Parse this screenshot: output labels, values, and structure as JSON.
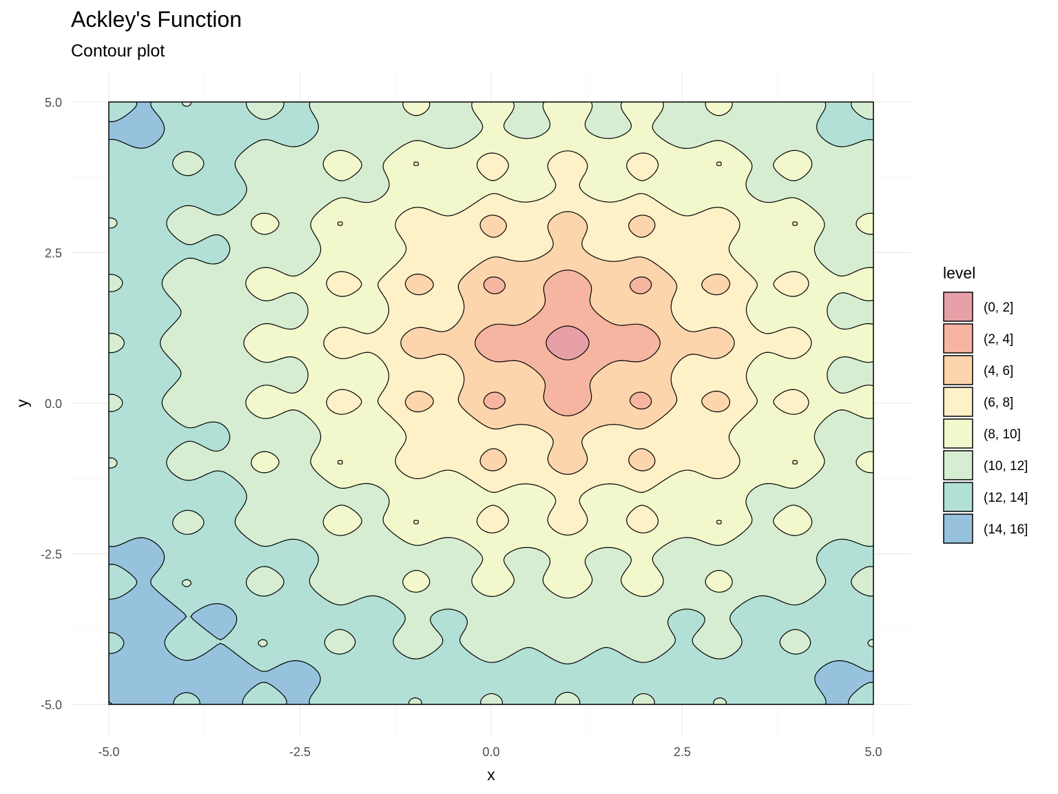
{
  "chart_data": {
    "type": "contour",
    "title": "Ackley's Function",
    "subtitle": "Contour plot",
    "xlabel": "x",
    "ylabel": "y",
    "xlim": [
      -5,
      5
    ],
    "ylim": [
      -5,
      5
    ],
    "x_ticks": [
      "-5.0",
      "-2.5",
      "0.0",
      "2.5",
      "5.0"
    ],
    "y_ticks": [
      "5.0",
      "2.5",
      "0.0",
      "-2.5",
      "-5.0"
    ],
    "x_tick_values": [
      -5,
      -2.5,
      0,
      2.5,
      5
    ],
    "y_tick_values": [
      5,
      2.5,
      0,
      -2.5,
      -5
    ],
    "minimum": {
      "x": 1,
      "y": 1
    },
    "grid": true,
    "legend": {
      "title": "level",
      "position": "right",
      "entries": [
        {
          "label": "(0, 2]",
          "color": "#E8A0A8"
        },
        {
          "label": "(2, 4]",
          "color": "#F6B5A0"
        },
        {
          "label": "(4, 6]",
          "color": "#FDD5AC"
        },
        {
          "label": "(6, 8]",
          "color": "#FEF0C7"
        },
        {
          "label": "(8, 10]",
          "color": "#F3F8CC"
        },
        {
          "label": "(10, 12]",
          "color": "#D6EDD1"
        },
        {
          "label": "(12, 14]",
          "color": "#B2E0D6"
        },
        {
          "label": "(14, 16]",
          "color": "#96C2DE"
        }
      ]
    }
  }
}
